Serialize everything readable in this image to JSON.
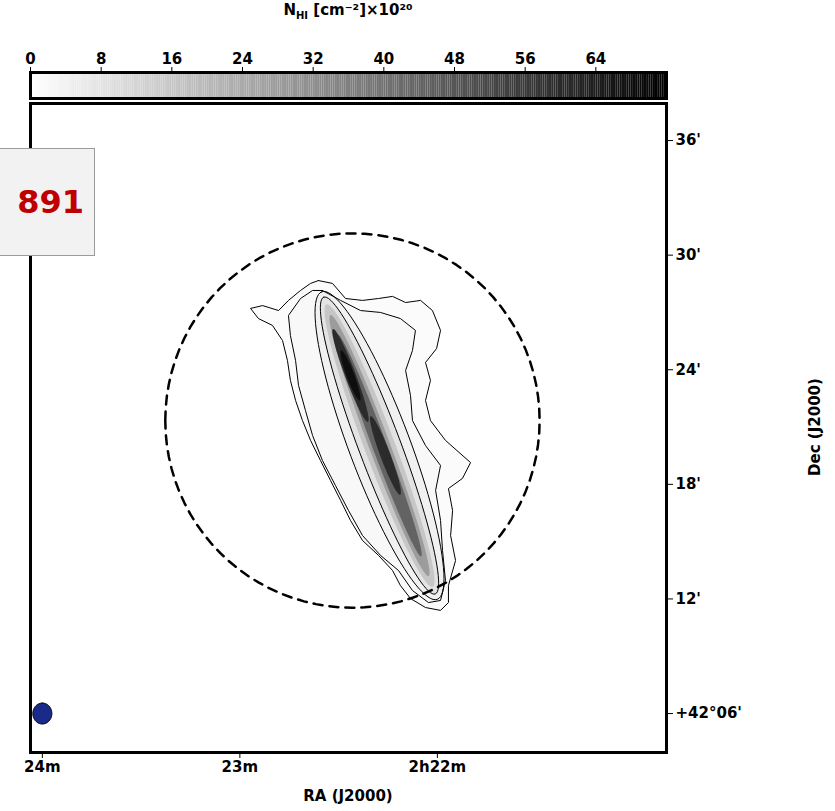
{
  "chart_data": {
    "type": "map",
    "annotation": "891",
    "xlabel": "RA (J2000)",
    "ylabel": "Dec (J2000)",
    "xlim": [
      24.06,
      20.84
    ],
    "xticks": [
      {
        "value": 24,
        "label": "24m"
      },
      {
        "value": 23,
        "label": "23m"
      },
      {
        "value": 22,
        "label": "2h22m"
      }
    ],
    "ylim": [
      3.96,
      37.94
    ],
    "yticks": [
      {
        "value": 6,
        "label": "+42°06'"
      },
      {
        "value": 12,
        "label": "12'"
      },
      {
        "value": 18,
        "label": "18'"
      },
      {
        "value": 24,
        "label": "24'"
      },
      {
        "value": 30,
        "label": "30'"
      },
      {
        "value": 36,
        "label": "36'"
      }
    ],
    "colorbar": {
      "label": {
        "symbol": "N",
        "subscript": "HI",
        "unit": " [cm⁻²]×10²⁰"
      },
      "range": [
        0,
        72
      ],
      "ticks": [
        0,
        8,
        16,
        24,
        32,
        40,
        48,
        56,
        64
      ],
      "colors": [
        "#ffffff",
        "#000000"
      ]
    },
    "contours": [
      {
        "level": 1,
        "ra": [
          22.602,
          22.531,
          22.465,
          22.379,
          22.298,
          22.227,
          22.161,
          22.085,
          22.025,
          21.984,
          22.004,
          22.06,
          22.035,
          22.06,
          22.035,
          21.959,
          21.832,
          21.873,
          21.944,
          21.923,
          21.933,
          21.908,
          21.944,
          21.944,
          21.984,
          22.06,
          22.136,
          22.187,
          22.227,
          22.298,
          22.379,
          22.44,
          22.49,
          22.541,
          22.592,
          22.642,
          22.683,
          22.718,
          22.744,
          22.759,
          22.784,
          22.835,
          22.906,
          22.946,
          22.885,
          22.804,
          22.754,
          22.693,
          22.642
        ],
        "dec": [
          28.67,
          28.52,
          27.73,
          27.63,
          27.73,
          27.84,
          27.52,
          27.63,
          27.1,
          26.06,
          25.11,
          24.38,
          23.44,
          22.39,
          21.34,
          20.3,
          19.14,
          18.31,
          17.78,
          16.63,
          15.32,
          14.01,
          12.7,
          11.81,
          11.4,
          11.55,
          12.02,
          12.7,
          13.49,
          14.28,
          15.06,
          16.11,
          17.16,
          18.2,
          19.25,
          20.3,
          21.34,
          22.39,
          23.44,
          24.48,
          25.53,
          26.32,
          26.68,
          27.21,
          27.36,
          27.1,
          27.63,
          28.15,
          28.52
        ]
      },
      {
        "level": 2,
        "ra": [
          22.582,
          22.49,
          22.389,
          22.288,
          22.187,
          22.111,
          22.126,
          22.161,
          22.136,
          22.126,
          22.06,
          21.984,
          22.009,
          21.984,
          21.974,
          21.959,
          21.984,
          22.045,
          22.126,
          22.197,
          22.288,
          22.379,
          22.45,
          22.516,
          22.582,
          22.632,
          22.668,
          22.703,
          22.718,
          22.744,
          22.754,
          22.693,
          22.632
        ],
        "dec": [
          28.15,
          27.63,
          27.1,
          27.0,
          26.68,
          26.06,
          25.01,
          23.96,
          22.65,
          21.34,
          20.03,
          18.99,
          17.68,
          16.11,
          14.54,
          12.97,
          11.92,
          11.81,
          12.44,
          13.49,
          14.28,
          15.32,
          16.63,
          17.94,
          19.25,
          20.56,
          21.87,
          23.18,
          24.48,
          25.79,
          26.84,
          27.73,
          28.15
        ]
      }
    ],
    "fill_ellipses": [
      {
        "value": 4,
        "ra": 22.293,
        "dec": 20.03,
        "major": 8.6,
        "minor": 1.6,
        "pa": 20.6
      },
      {
        "value": 8,
        "ra": 22.293,
        "dec": 20.03,
        "major": 8.3,
        "minor": 1.1,
        "pa": 20.6
      },
      {
        "value": 16,
        "ra": 22.293,
        "dec": 20.03,
        "major": 7.9,
        "minor": 0.8,
        "pa": 20.6
      },
      {
        "value": 28,
        "ra": 22.293,
        "dec": 20.03,
        "major": 7.3,
        "minor": 0.55,
        "pa": 20.6
      },
      {
        "value": 44,
        "ra": 22.293,
        "dec": 20.03,
        "major": 6.2,
        "minor": 0.38,
        "pa": 20.6
      },
      {
        "value": 60,
        "ra": 22.44,
        "dec": 23.7,
        "major": 2.6,
        "minor": 0.28,
        "pa": 20.6
      },
      {
        "value": 60,
        "ra": 22.263,
        "dec": 19.51,
        "major": 2.2,
        "minor": 0.26,
        "pa": 20.6
      },
      {
        "value": 68,
        "ra": 22.44,
        "dec": 23.7,
        "major": 1.4,
        "minor": 0.2,
        "pa": 20.6
      }
    ],
    "contour_levels": [
      4,
      8
    ],
    "circle": {
      "ra": 22.43,
      "dec": 21.34,
      "radius": 9.8
    },
    "beam": {
      "ra": 24.0,
      "dec": 6.0,
      "major": 0.55,
      "minor": 0.5,
      "pa": 0,
      "color": "#1a2a8a"
    }
  }
}
